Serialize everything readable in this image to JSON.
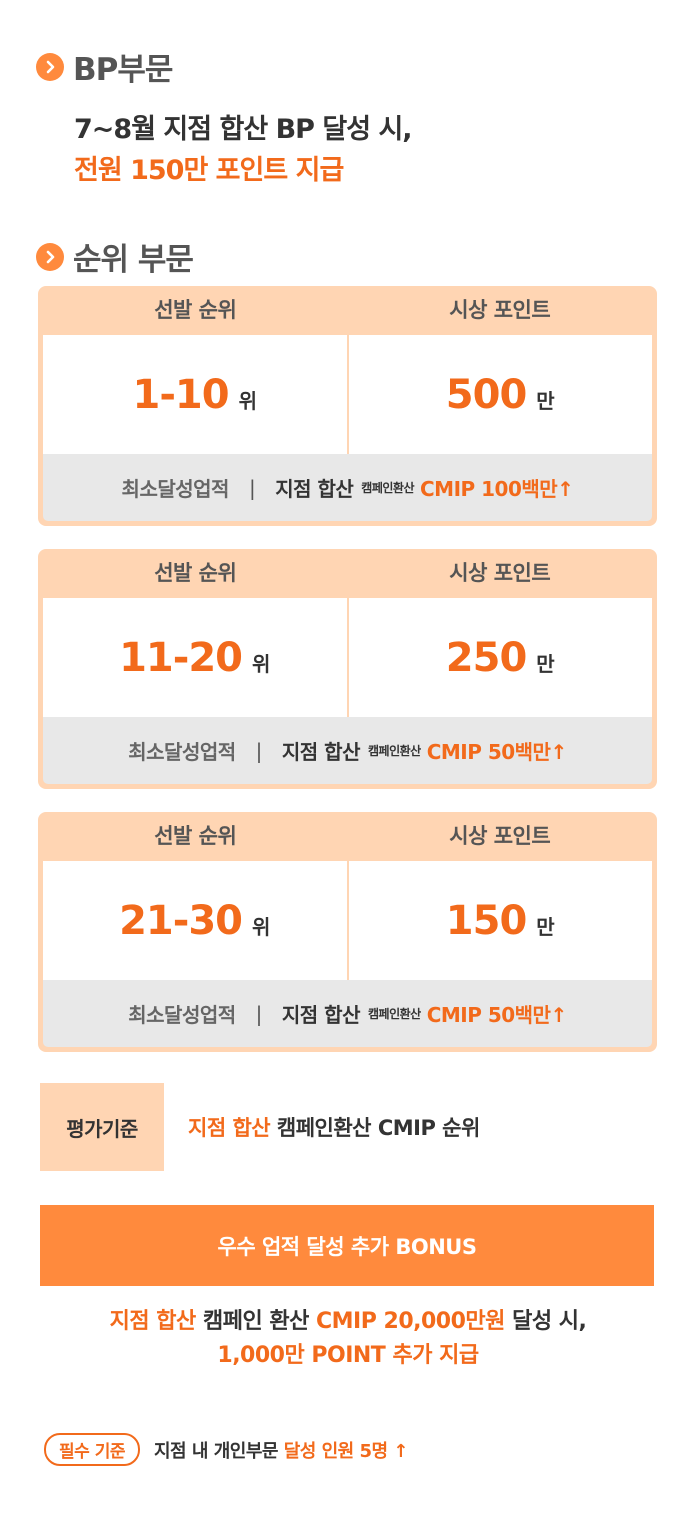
{
  "bp_section": {
    "title": "BP부문",
    "line1": "7~8월 지점 합산 BP 달성 시,",
    "line2": "전원 150만 포인트 지급"
  },
  "rank_section": {
    "title": "순위 부문",
    "cards": [
      {
        "header_rank": "선발 순위",
        "header_point": "시상 포인트",
        "rank_value": "1-10",
        "rank_unit": "위",
        "point_value": "500",
        "point_unit": "만",
        "foot_label": "최소달성업적",
        "foot_sep": "|",
        "foot_main": "지점 합산",
        "foot_small": "캠페인환산",
        "foot_accent": "CMIP 100백만↑"
      },
      {
        "header_rank": "선발 순위",
        "header_point": "시상 포인트",
        "rank_value": "11-20",
        "rank_unit": "위",
        "point_value": "250",
        "point_unit": "만",
        "foot_label": "최소달성업적",
        "foot_sep": "|",
        "foot_main": "지점 합산",
        "foot_small": "캠페인환산",
        "foot_accent": "CMIP 50백만↑"
      },
      {
        "header_rank": "선발 순위",
        "header_point": "시상 포인트",
        "rank_value": "21-30",
        "rank_unit": "위",
        "point_value": "150",
        "point_unit": "만",
        "foot_label": "최소달성업적",
        "foot_sep": "|",
        "foot_main": "지점 합산",
        "foot_small": "캠페인환산",
        "foot_accent": "CMIP 50백만↑"
      }
    ]
  },
  "criteria": {
    "label": "평가기준",
    "accent": "지점 합산",
    "rest": "캠페인환산 CMIP 순위"
  },
  "bonus": {
    "bar_label": "우수 업적 달성 추가 BONUS",
    "line1_accent1": "지점 합산",
    "line1_dark1": "캠페인 환산",
    "line1_accent2": "CMIP 20,000만원",
    "line1_dark2": "달성 시,",
    "line2": "1,000만 POINT 추가 지급"
  },
  "requirement": {
    "pill": "필수 기준",
    "dark": "지점 내 개인부문",
    "accent": "달성 인원 5명 ↑"
  },
  "colors": {
    "accent": "#f26a1b",
    "bar": "#ff8a3d",
    "peach": "#ffd5b3"
  }
}
